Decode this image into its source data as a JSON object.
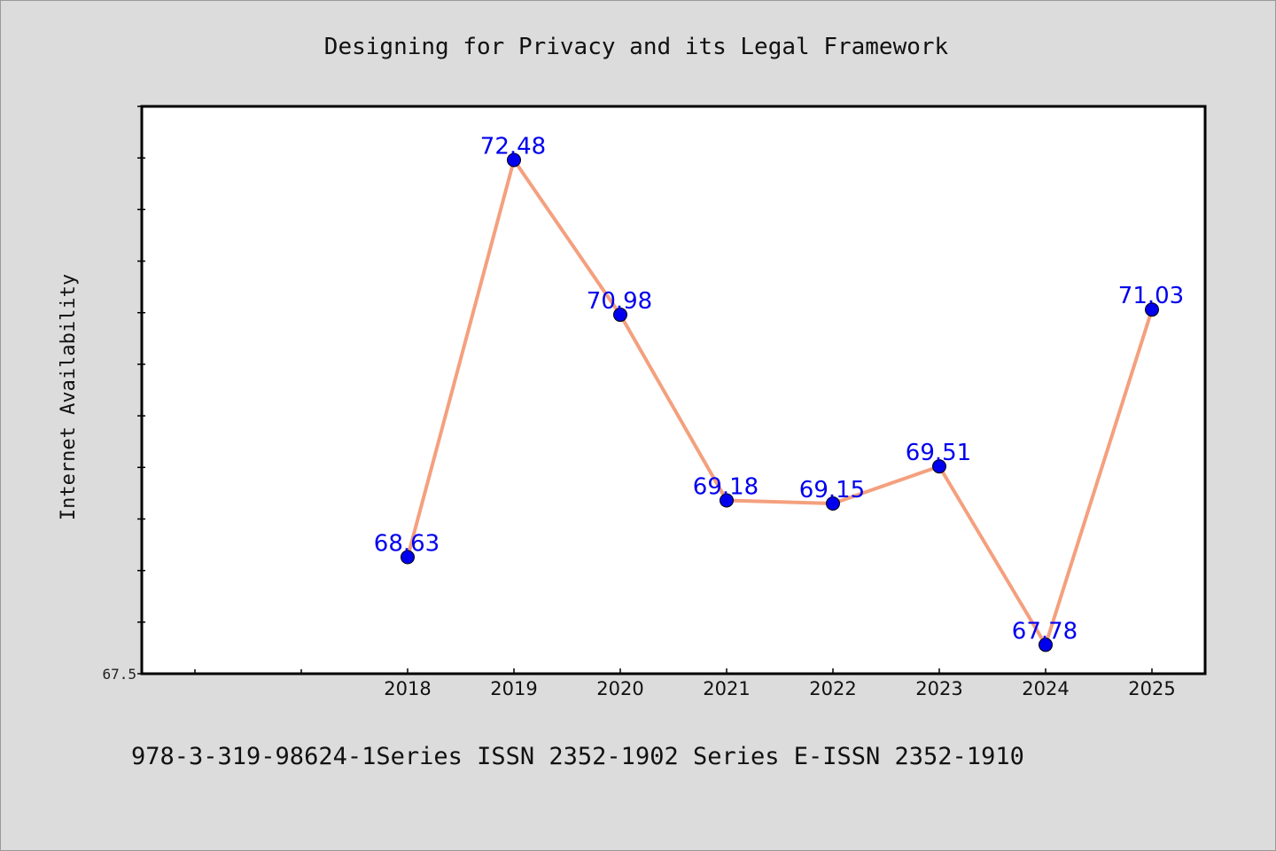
{
  "chart_data": {
    "type": "line",
    "title": "Designing for Privacy and its Legal Framework",
    "xlabel": "",
    "ylabel": "Internet Availability",
    "categories": [
      "2018",
      "2019",
      "2020",
      "2021",
      "2022",
      "2023",
      "2024",
      "2025"
    ],
    "series": [
      {
        "values": [
          68.63,
          72.48,
          70.98,
          69.18,
          69.15,
          69.51,
          67.78,
          71.03
        ]
      }
    ],
    "data_labels": [
      "68.63",
      "72.48",
      "70.98",
      "69.18",
      "69.15",
      "69.51",
      "67.78",
      "71.03"
    ],
    "ylim": [
      67.5,
      73.0
    ],
    "ytick_label": "67.5",
    "grid": false,
    "legend": "none",
    "line_color": "#f4a07e",
    "marker_color": "#0000ee",
    "label_color": "#0000ee",
    "background": "#dcdcdc",
    "plot_background": "#ffffff"
  },
  "footer": {
    "text": "978-3-319-98624-1Series ISSN 2352-1902 Series E-ISSN 2352-1910"
  }
}
